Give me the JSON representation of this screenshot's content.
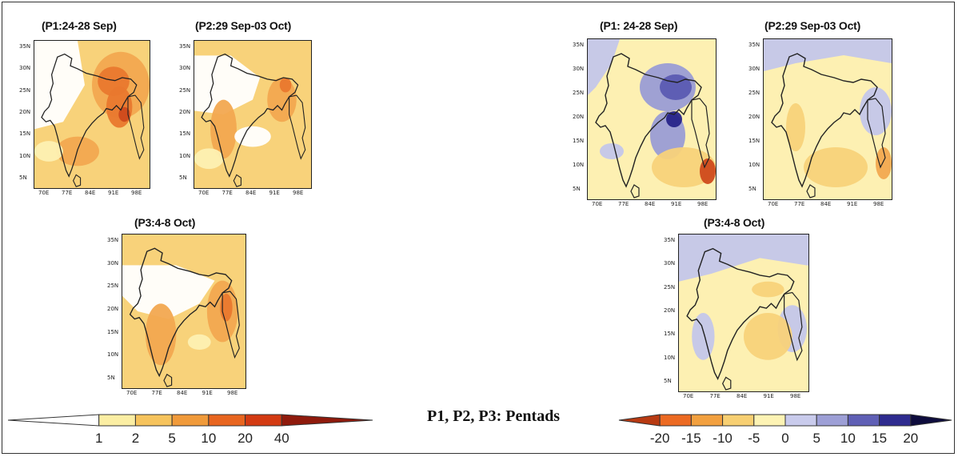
{
  "left_group": {
    "panels": [
      {
        "title": "(P1:24-28 Sep)"
      },
      {
        "title": "(P2:29 Sep-03 Oct)"
      },
      {
        "title": "(P3:4-8 Oct)"
      }
    ]
  },
  "right_group": {
    "panels": [
      {
        "title": "(P1: 24-28 Sep)"
      },
      {
        "title": "(P2:29 Sep-03 Oct)"
      },
      {
        "title": "(P3:4-8 Oct)"
      }
    ]
  },
  "map_axes": {
    "lat_ticks": [
      "35N",
      "30N",
      "25N",
      "20N",
      "15N",
      "10N",
      "5N"
    ],
    "lon_ticks": [
      "70E",
      "77E",
      "84E",
      "91E",
      "98E"
    ]
  },
  "note": "P1, P2, P3: Pentads",
  "colorbar_left": {
    "labels": [
      "1",
      "2",
      "5",
      "10",
      "20",
      "40"
    ],
    "colors": [
      "#ffffff",
      "#fbeea3",
      "#f6c35c",
      "#f09a3a",
      "#e8651f",
      "#d33a12",
      "#8f1a0c"
    ]
  },
  "colorbar_right": {
    "labels": [
      "-20",
      "-15",
      "-10",
      "-5",
      "0",
      "5",
      "10",
      "15",
      "20"
    ],
    "colors": [
      "#b83a12",
      "#ec6a22",
      "#f2a03f",
      "#f7cf72",
      "#fdf3b4",
      "#c9cbec",
      "#9d9fd6",
      "#5f5fb5",
      "#2e2b8f",
      "#0e0c3d"
    ]
  }
}
